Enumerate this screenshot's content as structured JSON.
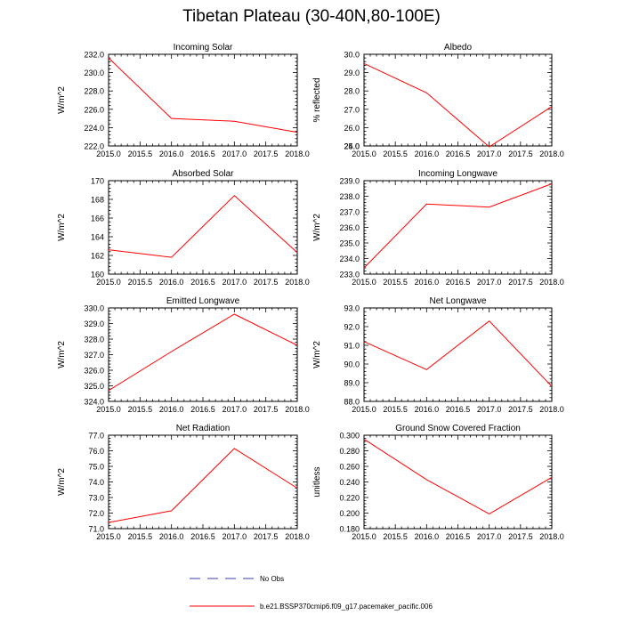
{
  "title": "Tibetan Plateau (30-40N,80-100E)",
  "line_color": "#ff0000",
  "obs_color": "#3b3bb0",
  "chart_data": [
    {
      "type": "line",
      "title": "Incoming Solar",
      "xlabel": "",
      "ylabel": "W/m^2",
      "xlim": [
        2015.0,
        2018.0
      ],
      "ylim": [
        222.0,
        232.0
      ],
      "xticks": [
        "2015.0",
        "2015.5",
        "2016.0",
        "2016.5",
        "2017.0",
        "2017.5",
        "2018.0"
      ],
      "yticks": [
        "222.0",
        "224.0",
        "226.0",
        "228.0",
        "230.0",
        "232.0"
      ],
      "x": [
        2015,
        2016,
        2017,
        2018
      ],
      "series": [
        {
          "name": "b.e21.BSSP370cmip6.f09_g17.pacemaker_pacific.006",
          "values": [
            231.6,
            225.0,
            224.7,
            223.5
          ]
        }
      ]
    },
    {
      "type": "line",
      "title": "Albedo",
      "xlabel": "",
      "ylabel": "% reflected",
      "xlim": [
        2015.0,
        2018.0
      ],
      "ylim": [
        25.0,
        30.0
      ],
      "xticks": [
        "2015.0",
        "2015.5",
        "2016.0",
        "2016.5",
        "2017.0",
        "2017.5",
        "2018.0"
      ],
      "yticks": [
        "25.0",
        "26.0",
        "27.0",
        "28.0",
        "29.0",
        "30.0"
      ],
      "extra_yticks": [
        "24.0"
      ],
      "x": [
        2015,
        2016,
        2017,
        2018
      ],
      "series": [
        {
          "name": "b.e21.BSSP370cmip6.f09_g17.pacemaker_pacific.006",
          "values": [
            29.5,
            27.9,
            24.95,
            27.15
          ]
        }
      ]
    },
    {
      "type": "line",
      "title": "Absorbed Solar",
      "xlabel": "",
      "ylabel": "W/m^2",
      "xlim": [
        2015.0,
        2018.0
      ],
      "ylim": [
        160.0,
        170.0
      ],
      "xticks": [
        "2015.0",
        "2015.5",
        "2016.0",
        "2016.5",
        "2017.0",
        "2017.5",
        "2018.0"
      ],
      "yticks": [
        "160",
        "162",
        "164",
        "166",
        "168",
        "170"
      ],
      "x": [
        2015,
        2016,
        2017,
        2018
      ],
      "series": [
        {
          "name": "b.e21.BSSP370cmip6.f09_g17.pacemaker_pacific.006",
          "values": [
            162.6,
            161.8,
            168.4,
            162.3
          ]
        }
      ]
    },
    {
      "type": "line",
      "title": "Incoming Longwave",
      "xlabel": "",
      "ylabel": "W/m^2",
      "xlim": [
        2015.0,
        2018.0
      ],
      "ylim": [
        233.0,
        239.0
      ],
      "xticks": [
        "2015.0",
        "2015.5",
        "2016.0",
        "2016.5",
        "2017.0",
        "2017.5",
        "2018.0"
      ],
      "yticks": [
        "233.0",
        "234.0",
        "235.0",
        "236.0",
        "237.0",
        "238.0",
        "239.0"
      ],
      "x": [
        2015,
        2016,
        2017,
        2018
      ],
      "series": [
        {
          "name": "b.e21.BSSP370cmip6.f09_g17.pacemaker_pacific.006",
          "values": [
            233.4,
            237.5,
            237.3,
            238.8
          ]
        }
      ]
    },
    {
      "type": "line",
      "title": "Emitted Longwave",
      "xlabel": "",
      "ylabel": "W/m^2",
      "xlim": [
        2015.0,
        2018.0
      ],
      "ylim": [
        324.0,
        330.0
      ],
      "xticks": [
        "2015.0",
        "2015.5",
        "2016.0",
        "2016.5",
        "2017.0",
        "2017.5",
        "2018.0"
      ],
      "yticks": [
        "324.0",
        "325.0",
        "326.0",
        "327.0",
        "328.0",
        "329.0",
        "330.0"
      ],
      "x": [
        2015,
        2016,
        2017,
        2018
      ],
      "series": [
        {
          "name": "b.e21.BSSP370cmip6.f09_g17.pacemaker_pacific.006",
          "values": [
            324.7,
            327.2,
            329.6,
            327.6
          ]
        }
      ]
    },
    {
      "type": "line",
      "title": "Net Longwave",
      "xlabel": "",
      "ylabel": "W/m^2",
      "xlim": [
        2015.0,
        2018.0
      ],
      "ylim": [
        88.0,
        93.0
      ],
      "xticks": [
        "2015.0",
        "2015.5",
        "2016.0",
        "2016.5",
        "2017.0",
        "2017.5",
        "2018.0"
      ],
      "yticks": [
        "88.0",
        "89.0",
        "90.0",
        "91.0",
        "92.0",
        "93.0"
      ],
      "x": [
        2015,
        2016,
        2017,
        2018
      ],
      "series": [
        {
          "name": "b.e21.BSSP370cmip6.f09_g17.pacemaker_pacific.006",
          "values": [
            91.2,
            89.7,
            92.3,
            88.8
          ]
        }
      ]
    },
    {
      "type": "line",
      "title": "Net Radiation",
      "xlabel": "",
      "ylabel": "W/m^2",
      "xlim": [
        2015.0,
        2018.0
      ],
      "ylim": [
        71.0,
        77.0
      ],
      "xticks": [
        "2015.0",
        "2015.5",
        "2016.0",
        "2016.5",
        "2017.0",
        "2017.5",
        "2018.0"
      ],
      "yticks": [
        "71.0",
        "72.0",
        "73.0",
        "74.0",
        "75.0",
        "76.0",
        "77.0"
      ],
      "x": [
        2015,
        2016,
        2017,
        2018
      ],
      "series": [
        {
          "name": "b.e21.BSSP370cmip6.f09_g17.pacemaker_pacific.006",
          "values": [
            71.4,
            72.15,
            76.15,
            73.6
          ]
        }
      ]
    },
    {
      "type": "line",
      "title": "Ground Snow Covered Fraction",
      "xlabel": "",
      "ylabel": "unitless",
      "xlim": [
        2015.0,
        2018.0
      ],
      "ylim": [
        0.18,
        0.3
      ],
      "xticks": [
        "2015.0",
        "2015.5",
        "2016.0",
        "2016.5",
        "2017.0",
        "2017.5",
        "2018.0"
      ],
      "yticks": [
        "0.180",
        "0.200",
        "0.220",
        "0.240",
        "0.260",
        "0.280",
        "0.300"
      ],
      "x": [
        2015,
        2016,
        2017,
        2018
      ],
      "series": [
        {
          "name": "b.e21.BSSP370cmip6.f09_g17.pacemaker_pacific.006",
          "values": [
            0.295,
            0.243,
            0.199,
            0.246
          ]
        }
      ]
    }
  ],
  "legend": [
    {
      "label": "No Obs",
      "style": "dashed",
      "color": "#3b3bb0"
    },
    {
      "label": "b.e21.BSSP370cmip6.f09_g17.pacemaker_pacific.006",
      "style": "solid",
      "color": "#ff0000"
    }
  ]
}
